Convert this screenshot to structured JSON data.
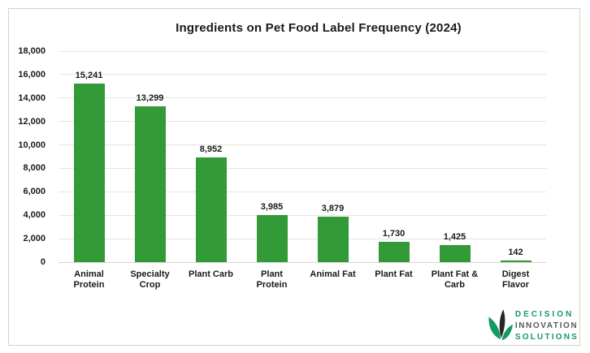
{
  "chart_data": {
    "type": "bar",
    "title": "Ingredients on Pet Food Label Frequency (2024)",
    "categories": [
      "Animal\nProtein",
      "Specialty\nCrop",
      "Plant Carb",
      "Plant\nProtein",
      "Animal Fat",
      "Plant Fat",
      "Plant Fat &\nCarb",
      "Digest\nFlavor"
    ],
    "values": [
      15241,
      13299,
      8952,
      3985,
      3879,
      1730,
      1425,
      142
    ],
    "value_labels": [
      "15,241",
      "13,299",
      "8,952",
      "3,985",
      "3,879",
      "1,730",
      "1,425",
      "142"
    ],
    "xlabel": "",
    "ylabel": "",
    "ylim": [
      0,
      18000
    ],
    "ytick_step": 2000,
    "ytick_labels": [
      "0",
      "2,000",
      "4,000",
      "6,000",
      "8,000",
      "10,000",
      "12,000",
      "14,000",
      "16,000",
      "18,000"
    ],
    "grid": "horizontal",
    "legend": "none",
    "colors": {
      "bar": "#339A38",
      "gridline": "#E8E4DA",
      "axis_line": "#D9D5C9",
      "frame_border": "#D6D2C6",
      "text": "#1A1A1A"
    }
  },
  "logo": {
    "name": "Decision Innovation Solutions",
    "line1": "DECISION",
    "line2": "INNOVATION",
    "line3": "SOLUTIONS",
    "colors": {
      "green": "#149A64",
      "gray": "#58595B",
      "leaf_dark": "#262626"
    }
  }
}
